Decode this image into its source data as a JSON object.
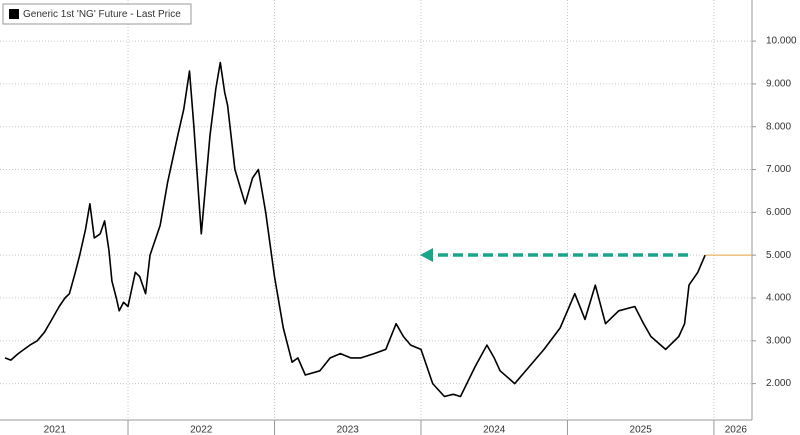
{
  "chart_data": {
    "type": "line",
    "series": [
      {
        "name": "Generic 1st 'NG' Future - Last Price",
        "color": "#000000",
        "x": [
          2021.16,
          2021.2,
          2021.25,
          2021.33,
          2021.38,
          2021.43,
          2021.48,
          2021.53,
          2021.57,
          2021.6,
          2021.64,
          2021.67,
          2021.71,
          2021.74,
          2021.77,
          2021.81,
          2021.84,
          2021.87,
          2021.89,
          2021.92,
          2021.94,
          2021.97,
          2022.0,
          2022.05,
          2022.08,
          2022.12,
          2022.15,
          2022.22,
          2022.27,
          2022.34,
          2022.38,
          2022.42,
          2022.45,
          2022.48,
          2022.5,
          2022.56,
          2022.6,
          2022.63,
          2022.66,
          2022.68,
          2022.73,
          2022.8,
          2022.85,
          2022.89,
          2022.94,
          2023.0,
          2023.06,
          2023.12,
          2023.16,
          2023.21,
          2023.31,
          2023.38,
          2023.45,
          2023.52,
          2023.59,
          2023.68,
          2023.76,
          2023.83,
          2023.88,
          2023.93,
          2024.0,
          2024.08,
          2024.16,
          2024.22,
          2024.27,
          2024.37,
          2024.45,
          2024.5,
          2024.54,
          2024.64,
          2024.74,
          2024.84,
          2024.95,
          2025.05,
          2025.12,
          2025.19,
          2025.26,
          2025.35,
          2025.46,
          2025.52,
          2025.57,
          2025.67,
          2025.76,
          2025.8,
          2025.83,
          2025.89,
          2025.94
        ],
        "values": [
          2.6,
          2.55,
          2.7,
          2.9,
          3.0,
          3.2,
          3.5,
          3.8,
          4.0,
          4.1,
          4.6,
          5.0,
          5.6,
          6.2,
          5.4,
          5.5,
          5.8,
          5.1,
          4.4,
          4.0,
          3.7,
          3.9,
          3.8,
          4.6,
          4.5,
          4.1,
          5.0,
          5.7,
          6.7,
          7.8,
          8.4,
          9.3,
          8.0,
          6.5,
          5.5,
          7.8,
          8.9,
          9.5,
          8.8,
          8.5,
          7.0,
          6.2,
          6.8,
          7.0,
          6.0,
          4.5,
          3.3,
          2.5,
          2.6,
          2.2,
          2.3,
          2.6,
          2.7,
          2.6,
          2.6,
          2.7,
          2.8,
          3.4,
          3.1,
          2.9,
          2.8,
          2.0,
          1.7,
          1.75,
          1.7,
          2.4,
          2.9,
          2.6,
          2.3,
          2.0,
          2.4,
          2.8,
          3.3,
          4.1,
          3.5,
          4.3,
          3.4,
          3.7,
          3.8,
          3.4,
          3.1,
          2.8,
          3.1,
          3.4,
          4.3,
          4.6,
          5.0
        ]
      }
    ],
    "last_price_color": "#e8a33c",
    "ylim": [
      1.15,
      10.96
    ],
    "yticks": [
      {
        "value": 2,
        "label": "2.000"
      },
      {
        "value": 3,
        "label": "3.000"
      },
      {
        "value": 4,
        "label": "4.000"
      },
      {
        "value": 5,
        "label": "5.000"
      },
      {
        "value": 6,
        "label": "6.000"
      },
      {
        "value": 7,
        "label": "7.000"
      },
      {
        "value": 8,
        "label": "8.000"
      },
      {
        "value": 9,
        "label": "9.000"
      },
      {
        "value": 10,
        "label": "10.000"
      }
    ],
    "xlim": [
      2021.126,
      2026.26
    ],
    "xticks": [
      {
        "value": 2021.5,
        "label": "2021"
      },
      {
        "value": 2022.5,
        "label": "2022"
      },
      {
        "value": 2023.5,
        "label": "2023"
      },
      {
        "value": 2024.5,
        "label": "2024"
      },
      {
        "value": 2025.5,
        "label": "2025"
      },
      {
        "value": 2026.15,
        "label": "2026"
      }
    ],
    "year_boundaries": [
      2022,
      2023,
      2024,
      2025,
      2026
    ],
    "grid": true
  }
}
